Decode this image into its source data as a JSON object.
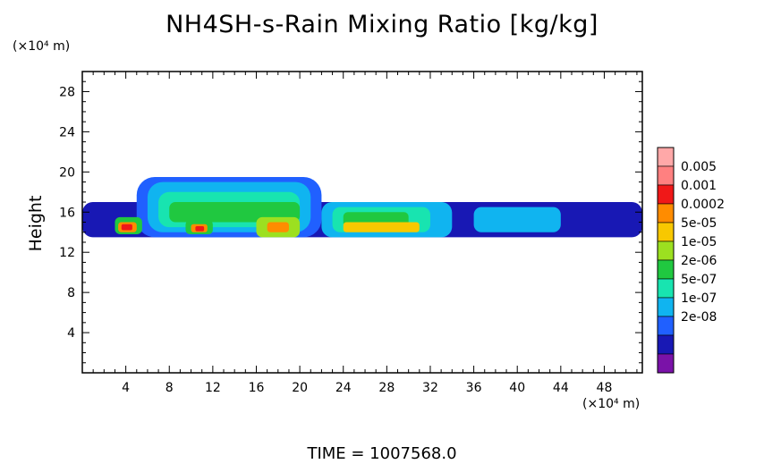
{
  "chart_data": {
    "type": "heatmap",
    "title": "NH4SH-s-Rain Mixing Ratio [kg/kg]",
    "ylabel": "Height",
    "xunit": "(×10⁴ m)",
    "yunit": "(×10⁴ m)",
    "xlim": [
      0,
      51.5
    ],
    "ylim": [
      0,
      30
    ],
    "xticks": [
      4,
      8,
      12,
      16,
      20,
      24,
      28,
      32,
      36,
      40,
      44,
      48
    ],
    "yticks": [
      4,
      8,
      12,
      16,
      20,
      24,
      28
    ],
    "levels": [
      {
        "label": "2e-08",
        "color": "#7a12a8"
      },
      {
        "label": "1e-07",
        "color": "#1818b4"
      },
      {
        "label": "5e-07",
        "color": "#2060ff"
      },
      {
        "label": "2e-06",
        "color": "#10b4f0"
      },
      {
        "label": "2e-06",
        "color": "#18e4b0"
      },
      {
        "label": "1e-05",
        "color": "#20c840"
      },
      {
        "label": "5e-05",
        "color": "#9ce020"
      },
      {
        "label": "0.0002",
        "color": "#f8c800"
      },
      {
        "label": "0.0002",
        "color": "#ff8c00"
      },
      {
        "label": "0.001",
        "color": "#f01818"
      },
      {
        "label": "0.005",
        "color": "#ff8080"
      }
    ],
    "legend_labels": [
      "0.005",
      "0.001",
      "0.0002",
      "5e-05",
      "1e-05",
      "2e-06",
      "5e-07",
      "1e-07",
      "2e-08"
    ],
    "legend_colors": [
      "#ffa8a8",
      "#ff8080",
      "#f01818",
      "#ff8c00",
      "#f8c800",
      "#9ce020",
      "#20c840",
      "#18e4b0",
      "#10b4f0",
      "#2060ff",
      "#1818b4",
      "#7a12a8"
    ],
    "regions": [
      {
        "x": [
          0,
          51.5
        ],
        "y": [
          13.5,
          17
        ],
        "level": 1
      },
      {
        "x": [
          5,
          22
        ],
        "y": [
          13.5,
          19.5
        ],
        "level": 2
      },
      {
        "x": [
          6,
          21
        ],
        "y": [
          14,
          19
        ],
        "level": 3
      },
      {
        "x": [
          7,
          20
        ],
        "y": [
          14.5,
          18
        ],
        "level": 4
      },
      {
        "x": [
          22,
          34
        ],
        "y": [
          13.5,
          17
        ],
        "level": 3
      },
      {
        "x": [
          23,
          32
        ],
        "y": [
          14,
          16.5
        ],
        "level": 4
      },
      {
        "x": [
          36,
          44
        ],
        "y": [
          14,
          16.5
        ],
        "level": 3
      },
      {
        "x": [
          8,
          20
        ],
        "y": [
          15,
          17
        ],
        "level": 5
      },
      {
        "x": [
          24,
          30
        ],
        "y": [
          14.5,
          16
        ],
        "level": 5
      },
      {
        "x": [
          3,
          5.5
        ],
        "y": [
          13.8,
          15.5
        ],
        "level": 5
      },
      {
        "x": [
          9.5,
          12
        ],
        "y": [
          13.8,
          15.2
        ],
        "level": 5
      },
      {
        "x": [
          16,
          20
        ],
        "y": [
          13.5,
          15.5
        ],
        "level": 6
      },
      {
        "x": [
          24,
          31
        ],
        "y": [
          14,
          15
        ],
        "level": 7
      },
      {
        "x": [
          3.3,
          5
        ],
        "y": [
          14,
          15
        ],
        "level": 8
      },
      {
        "x": [
          10,
          11.5
        ],
        "y": [
          14,
          14.8
        ],
        "level": 8
      },
      {
        "x": [
          17,
          19
        ],
        "y": [
          14,
          15
        ],
        "level": 8
      },
      {
        "x": [
          3.6,
          4.6
        ],
        "y": [
          14.2,
          14.8
        ],
        "level": 9
      },
      {
        "x": [
          10.4,
          11.2
        ],
        "y": [
          14.1,
          14.6
        ],
        "level": 9
      }
    ]
  },
  "footer": {
    "time": "TIME = 1007568.0"
  }
}
